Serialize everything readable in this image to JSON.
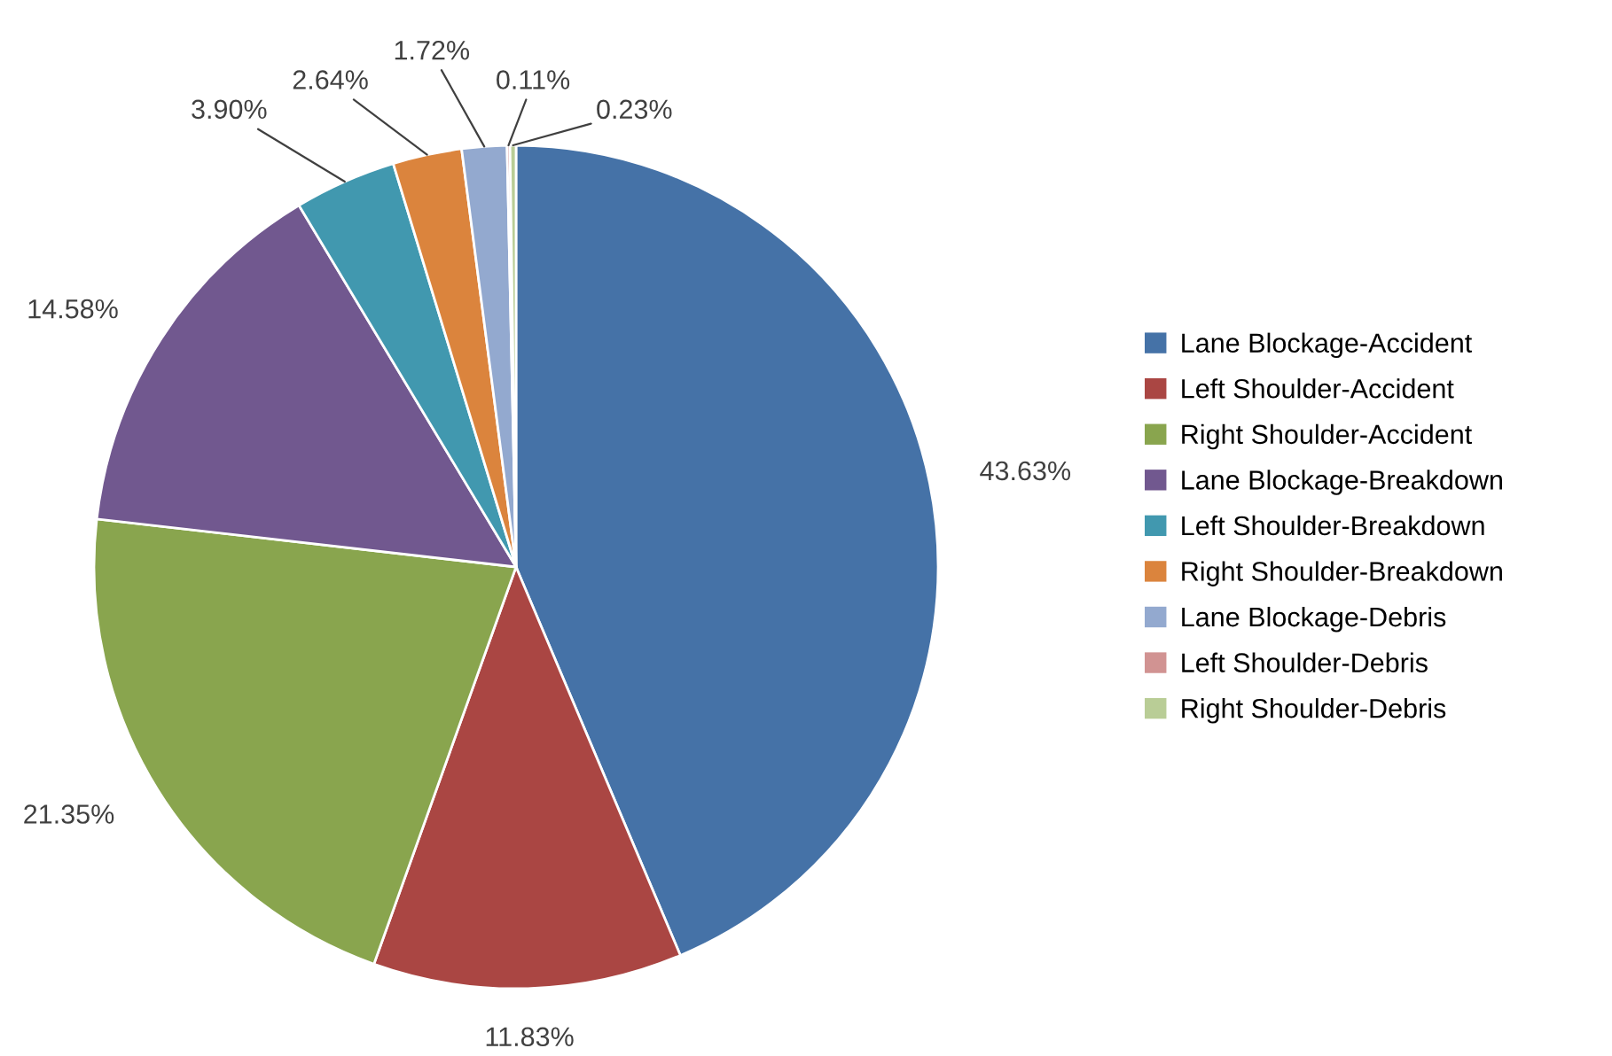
{
  "chart_data": {
    "type": "pie",
    "categories": [
      "Lane Blockage-Accident",
      "Left Shoulder-Accident",
      "Right Shoulder-Accident",
      "Lane Blockage-Breakdown",
      "Left Shoulder-Breakdown",
      "Right Shoulder-Breakdown",
      "Lane Blockage-Debris",
      "Left Shoulder-Debris",
      "Right Shoulder-Debris"
    ],
    "values": [
      43.63,
      11.83,
      21.35,
      14.58,
      3.9,
      2.64,
      1.72,
      0.11,
      0.23
    ],
    "value_labels": [
      "43.63%",
      "11.83%",
      "21.35%",
      "14.58%",
      "3.90%",
      "2.64%",
      "1.72%",
      "0.11%",
      "0.23%"
    ],
    "colors": [
      "#4572a7",
      "#aa4643",
      "#89a54e",
      "#71588f",
      "#4198af",
      "#db843d",
      "#93a9cf",
      "#d19392",
      "#b9cd96"
    ],
    "legend": "right"
  }
}
